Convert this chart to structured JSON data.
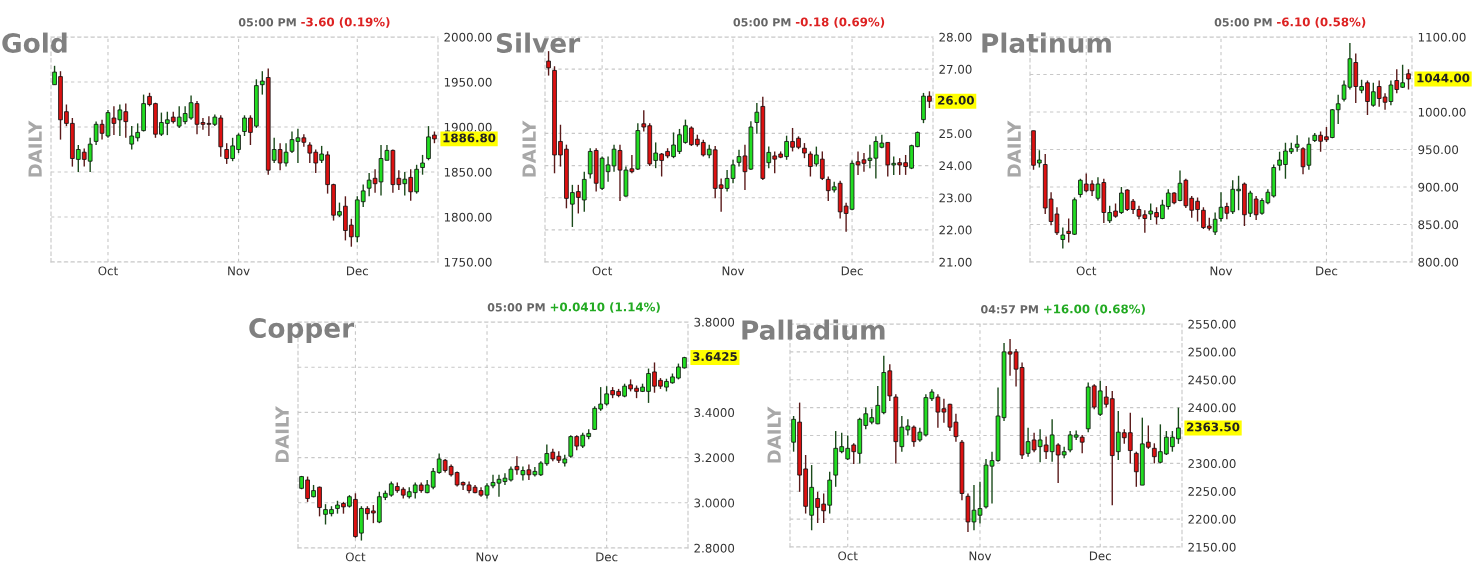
{
  "chart_data": [
    {
      "type": "candlestick",
      "title": "Gold",
      "ylabel": "DAILY",
      "grid": true,
      "annotations": [
        "05:00 PM",
        "-3.60 (0.19%)",
        "1886.80"
      ],
      "categories": [
        null,
        null,
        null,
        null,
        null,
        null,
        null,
        null,
        null,
        "Oct",
        null,
        null,
        null,
        null,
        null,
        null,
        null,
        null,
        null,
        null,
        null,
        null,
        null,
        null,
        null,
        null,
        null,
        null,
        null,
        null,
        null,
        "Nov",
        null,
        null,
        null,
        null,
        null,
        null,
        null,
        null,
        null,
        null,
        null,
        null,
        null,
        null,
        null,
        null,
        null,
        null,
        null,
        "Dec",
        null,
        null,
        null,
        null,
        null,
        null,
        null,
        null,
        null,
        null,
        null,
        null,
        null
      ],
      "ylim": [
        1750,
        2000
      ],
      "yticks": [
        {
          "value": 1750,
          "label": "1750.00"
        },
        {
          "value": 1800,
          "label": "1800.00"
        },
        {
          "value": 1850,
          "label": "1850.00"
        },
        {
          "value": 1900,
          "label": "1900.00"
        },
        {
          "value": 1950,
          "label": "1950.00"
        },
        {
          "value": 2000,
          "label": "2000.00"
        }
      ],
      "ohlc": [
        [
          1947,
          1968,
          1947,
          1961
        ],
        [
          1956,
          1962,
          1886,
          1908
        ],
        [
          1917,
          1925,
          1901,
          1904
        ],
        [
          1904,
          1910,
          1856,
          1865
        ],
        [
          1864,
          1880,
          1850,
          1875
        ],
        [
          1872,
          1876,
          1856,
          1864
        ],
        [
          1862,
          1888,
          1850,
          1881
        ],
        [
          1884,
          1906,
          1880,
          1903
        ],
        [
          1903,
          1908,
          1886,
          1893
        ],
        [
          1890,
          1919,
          1888,
          1916
        ],
        [
          1910,
          1923,
          1891,
          1904
        ],
        [
          1908,
          1925,
          1890,
          1919
        ],
        [
          1917,
          1926,
          1888,
          1906
        ],
        [
          1881,
          1901,
          1875,
          1890
        ],
        [
          1888,
          1904,
          1884,
          1894
        ],
        [
          1896,
          1936,
          1895,
          1926
        ],
        [
          1934,
          1938,
          1923,
          1925
        ],
        [
          1926,
          1927,
          1888,
          1892
        ],
        [
          1892,
          1916,
          1890,
          1905
        ],
        [
          1904,
          1917,
          1891,
          1908
        ],
        [
          1911,
          1917,
          1904,
          1906
        ],
        [
          1901,
          1923,
          1899,
          1911
        ],
        [
          1906,
          1923,
          1903,
          1915
        ],
        [
          1910,
          1935,
          1908,
          1927
        ],
        [
          1926,
          1929,
          1892,
          1903
        ],
        [
          1905,
          1910,
          1897,
          1903
        ],
        [
          1904,
          1912,
          1890,
          1903
        ],
        [
          1903,
          1914,
          1901,
          1911
        ],
        [
          1910,
          1913,
          1867,
          1878
        ],
        [
          1875,
          1882,
          1859,
          1865
        ],
        [
          1865,
          1888,
          1862,
          1879
        ],
        [
          1875,
          1893,
          1871,
          1891
        ],
        [
          1895,
          1913,
          1890,
          1910
        ],
        [
          1910,
          1913,
          1880,
          1894
        ],
        [
          1901,
          1953,
          1899,
          1946
        ],
        [
          1947,
          1962,
          1936,
          1951
        ],
        [
          1955,
          1965,
          1847,
          1852
        ],
        [
          1863,
          1888,
          1860,
          1875
        ],
        [
          1875,
          1882,
          1852,
          1860
        ],
        [
          1860,
          1882,
          1856,
          1872
        ],
        [
          1873,
          1895,
          1871,
          1886
        ],
        [
          1884,
          1898,
          1860,
          1888
        ],
        [
          1888,
          1892,
          1878,
          1883
        ],
        [
          1880,
          1883,
          1860,
          1871
        ],
        [
          1872,
          1875,
          1849,
          1860
        ],
        [
          1863,
          1879,
          1860,
          1870
        ],
        [
          1869,
          1873,
          1826,
          1836
        ],
        [
          1836,
          1837,
          1796,
          1802
        ],
        [
          1802,
          1816,
          1800,
          1806
        ],
        [
          1812,
          1823,
          1774,
          1785
        ],
        [
          1791,
          1798,
          1767,
          1778
        ],
        [
          1778,
          1823,
          1772,
          1819
        ],
        [
          1817,
          1836,
          1811,
          1829
        ],
        [
          1832,
          1849,
          1823,
          1841
        ],
        [
          1843,
          1853,
          1827,
          1837
        ],
        [
          1839,
          1880,
          1824,
          1865
        ],
        [
          1863,
          1880,
          1863,
          1874
        ],
        [
          1874,
          1875,
          1827,
          1836
        ],
        [
          1843,
          1852,
          1830,
          1836
        ],
        [
          1837,
          1850,
          1824,
          1842
        ],
        [
          1844,
          1853,
          1818,
          1828
        ],
        [
          1828,
          1858,
          1826,
          1853
        ],
        [
          1855,
          1869,
          1847,
          1860
        ],
        [
          1865,
          1901,
          1863,
          1889
        ],
        [
          1891,
          1895,
          1882,
          1886.8
        ]
      ]
    },
    {
      "type": "candlestick",
      "title": "Silver",
      "ylabel": "DAILY",
      "grid": true,
      "annotations": [
        "05:00 PM",
        "-0.18 (0.69%)",
        "26.00"
      ],
      "categories": [
        null,
        null,
        null,
        null,
        null,
        null,
        null,
        null,
        null,
        "Oct",
        null,
        null,
        null,
        null,
        null,
        null,
        null,
        null,
        null,
        null,
        null,
        null,
        null,
        null,
        null,
        null,
        null,
        null,
        null,
        null,
        null,
        "Nov",
        null,
        null,
        null,
        null,
        null,
        null,
        null,
        null,
        null,
        null,
        null,
        null,
        null,
        null,
        null,
        null,
        null,
        null,
        null,
        "Dec",
        null,
        null,
        null,
        null,
        null,
        null,
        null,
        null,
        null,
        null,
        null,
        null,
        null
      ],
      "ylim": [
        21,
        28
      ],
      "yticks": [
        {
          "value": 21,
          "label": "21.00"
        },
        {
          "value": 22,
          "label": "22.00"
        },
        {
          "value": 23,
          "label": "23.00"
        },
        {
          "value": 24,
          "label": "24.00"
        },
        {
          "value": 25,
          "label": "25.00"
        },
        {
          "value": 26,
          "label": null
        },
        {
          "value": 27,
          "label": "27.00"
        },
        {
          "value": 28,
          "label": "28.00"
        }
      ],
      "ohlc": [
        [
          27.25,
          27.56,
          26.8,
          27.04
        ],
        [
          26.96,
          27.09,
          23.76,
          24.33
        ],
        [
          24.75,
          25.27,
          23.97,
          24.33
        ],
        [
          24.51,
          24.65,
          22.67,
          22.98
        ],
        [
          22.8,
          23.4,
          22.09,
          23.16
        ],
        [
          23.19,
          23.4,
          22.51,
          23.01
        ],
        [
          22.93,
          23.81,
          22.56,
          23.57
        ],
        [
          23.74,
          24.54,
          23.6,
          24.44
        ],
        [
          24.47,
          24.54,
          23.19,
          23.45
        ],
        [
          23.29,
          24.28,
          23.24,
          24.23
        ],
        [
          23.81,
          24.28,
          23.5,
          24.02
        ],
        [
          23.99,
          24.65,
          23.81,
          24.51
        ],
        [
          24.47,
          24.65,
          22.9,
          23.86
        ],
        [
          23.05,
          23.97,
          23.03,
          23.86
        ],
        [
          23.9,
          24.33,
          23.76,
          23.81
        ],
        [
          23.89,
          25.32,
          23.86,
          25.09
        ],
        [
          25.3,
          25.72,
          25.06,
          25.2
        ],
        [
          25.24,
          25.32,
          23.99,
          24.05
        ],
        [
          24.16,
          24.72,
          23.92,
          24.39
        ],
        [
          24.36,
          24.39,
          23.66,
          24.16
        ],
        [
          24.44,
          24.54,
          24.23,
          24.3
        ],
        [
          24.28,
          25.03,
          24.23,
          24.64
        ],
        [
          24.44,
          25.14,
          24.36,
          24.96
        ],
        [
          24.72,
          25.43,
          24.68,
          25.24
        ],
        [
          25.17,
          25.22,
          24.61,
          24.65
        ],
        [
          24.82,
          24.96,
          24.59,
          24.65
        ],
        [
          24.72,
          24.8,
          24.28,
          24.33
        ],
        [
          24.33,
          24.65,
          24.23,
          24.51
        ],
        [
          24.49,
          24.61,
          22.98,
          23.29
        ],
        [
          23.4,
          23.6,
          22.56,
          23.29
        ],
        [
          23.29,
          23.86,
          23.19,
          23.6
        ],
        [
          23.6,
          24.18,
          23.45,
          24.02
        ],
        [
          24.1,
          24.49,
          23.97,
          24.28
        ],
        [
          24.3,
          24.65,
          23.24,
          23.81
        ],
        [
          23.89,
          25.38,
          23.86,
          25.2
        ],
        [
          25.34,
          25.95,
          24.99,
          25.66
        ],
        [
          25.84,
          26.14,
          23.55,
          23.6
        ],
        [
          24.09,
          24.59,
          23.92,
          24.41
        ],
        [
          24.3,
          24.44,
          23.76,
          24.2
        ],
        [
          24.36,
          24.44,
          24.23,
          24.26
        ],
        [
          24.28,
          24.93,
          24.18,
          24.75
        ],
        [
          24.75,
          25.17,
          24.44,
          24.57
        ],
        [
          24.85,
          24.91,
          24.51,
          24.57
        ],
        [
          24.54,
          24.7,
          24.23,
          24.39
        ],
        [
          24.36,
          24.44,
          23.66,
          23.97
        ],
        [
          24.05,
          24.59,
          23.97,
          24.33
        ],
        [
          24.2,
          24.44,
          23.55,
          23.6
        ],
        [
          23.57,
          23.66,
          22.9,
          23.22
        ],
        [
          23.24,
          23.5,
          23.16,
          23.34
        ],
        [
          23.45,
          23.53,
          22.35,
          22.56
        ],
        [
          22.74,
          22.84,
          21.94,
          22.51
        ],
        [
          22.64,
          24.16,
          22.61,
          24.07
        ],
        [
          24.12,
          24.44,
          23.71,
          24.02
        ],
        [
          24.18,
          24.39,
          23.81,
          24.07
        ],
        [
          24.16,
          24.65,
          23.92,
          24.23
        ],
        [
          24.23,
          24.91,
          23.6,
          24.75
        ],
        [
          24.57,
          24.96,
          24.54,
          24.7
        ],
        [
          24.72,
          24.72,
          23.66,
          24.02
        ],
        [
          24.02,
          24.28,
          23.71,
          24.07
        ],
        [
          24.09,
          24.23,
          23.71,
          24.02
        ],
        [
          24.09,
          24.33,
          23.71,
          23.97
        ],
        [
          23.92,
          24.65,
          23.89,
          24.62
        ],
        [
          24.59,
          25.06,
          24.57,
          25.03
        ],
        [
          25.43,
          26.26,
          25.32,
          26.16
        ],
        [
          26.16,
          26.31,
          25.79,
          26.0
        ]
      ]
    },
    {
      "type": "candlestick",
      "title": "Platinum",
      "ylabel": "DAILY",
      "grid": true,
      "annotations": [
        "05:00 PM",
        "-6.10 (0.58%)",
        "1044.00"
      ],
      "categories": [
        null,
        null,
        null,
        null,
        null,
        null,
        null,
        null,
        null,
        "Oct",
        null,
        null,
        null,
        null,
        null,
        null,
        null,
        null,
        null,
        null,
        null,
        null,
        null,
        null,
        null,
        null,
        null,
        null,
        null,
        null,
        null,
        null,
        "Nov",
        null,
        null,
        null,
        null,
        null,
        null,
        null,
        null,
        null,
        null,
        null,
        null,
        null,
        null,
        null,
        null,
        null,
        "Dec",
        null,
        null,
        null,
        null,
        null,
        null,
        null,
        null,
        null,
        null,
        null,
        null,
        null,
        null
      ],
      "ylim": [
        800,
        1100
      ],
      "yticks": [
        {
          "value": 800,
          "label": "800.00"
        },
        {
          "value": 850,
          "label": "850.00"
        },
        {
          "value": 900,
          "label": "900.00"
        },
        {
          "value": 950,
          "label": "950.00"
        },
        {
          "value": 1000,
          "label": "1000.00"
        },
        {
          "value": 1050,
          "label": null
        },
        {
          "value": 1100,
          "label": "1100.00"
        }
      ],
      "ohlc": [
        [
          975,
          975,
          923,
          929
        ],
        [
          932,
          949,
          926,
          936
        ],
        [
          930,
          944,
          864,
          872
        ],
        [
          884,
          893,
          849,
          854
        ],
        [
          864,
          873,
          836,
          839
        ],
        [
          830,
          846,
          818,
          836
        ],
        [
          841,
          858,
          826,
          838
        ],
        [
          837,
          886,
          836,
          883
        ],
        [
          890,
          911,
          886,
          909
        ],
        [
          904,
          918,
          893,
          895
        ],
        [
          904,
          909,
          888,
          895
        ],
        [
          885,
          913,
          882,
          904
        ],
        [
          906,
          911,
          852,
          866
        ],
        [
          855,
          875,
          852,
          866
        ],
        [
          868,
          878,
          859,
          861
        ],
        [
          866,
          900,
          864,
          892
        ],
        [
          896,
          897,
          868,
          870
        ],
        [
          881,
          884,
          864,
          870
        ],
        [
          870,
          875,
          857,
          861
        ],
        [
          863,
          869,
          839,
          858
        ],
        [
          864,
          878,
          856,
          868
        ],
        [
          866,
          873,
          850,
          860
        ],
        [
          858,
          883,
          857,
          876
        ],
        [
          874,
          897,
          870,
          892
        ],
        [
          892,
          893,
          877,
          879
        ],
        [
          882,
          922,
          881,
          905
        ],
        [
          909,
          911,
          872,
          875
        ],
        [
          885,
          888,
          859,
          869
        ],
        [
          881,
          886,
          854,
          870
        ],
        [
          869,
          873,
          844,
          846
        ],
        [
          848,
          859,
          842,
          845
        ],
        [
          840,
          866,
          836,
          857
        ],
        [
          858,
          893,
          854,
          873
        ],
        [
          874,
          879,
          857,
          865
        ],
        [
          867,
          909,
          864,
          897
        ],
        [
          895,
          915,
          869,
          897
        ],
        [
          904,
          906,
          848,
          863
        ],
        [
          865,
          895,
          860,
          892
        ],
        [
          884,
          888,
          856,
          863
        ],
        [
          865,
          885,
          863,
          882
        ],
        [
          879,
          897,
          877,
          893
        ],
        [
          888,
          930,
          886,
          926
        ],
        [
          929,
          947,
          922,
          936
        ],
        [
          930,
          959,
          911,
          948
        ],
        [
          947,
          959,
          944,
          951
        ],
        [
          953,
          969,
          947,
          957
        ],
        [
          951,
          953,
          917,
          927
        ],
        [
          929,
          966,
          923,
          957
        ],
        [
          962,
          972,
          960,
          969
        ],
        [
          969,
          974,
          947,
          961
        ],
        [
          967,
          980,
          960,
          963
        ],
        [
          966,
          1004,
          965,
          1003
        ],
        [
          1003,
          1023,
          984,
          1011
        ],
        [
          1017,
          1042,
          1014,
          1036
        ],
        [
          1033,
          1092,
          1030,
          1071
        ],
        [
          1066,
          1078,
          1012,
          1034
        ],
        [
          1029,
          1043,
          1025,
          1034
        ],
        [
          1039,
          1042,
          996,
          1014
        ],
        [
          1009,
          1039,
          1007,
          1027
        ],
        [
          1034,
          1042,
          1007,
          1018
        ],
        [
          1020,
          1025,
          1003,
          1013
        ],
        [
          1014,
          1042,
          1009,
          1036
        ],
        [
          1042,
          1057,
          1025,
          1030
        ],
        [
          1033,
          1063,
          1032,
          1039
        ],
        [
          1051,
          1057,
          1030,
          1044
        ]
      ]
    },
    {
      "type": "candlestick",
      "title": "Copper",
      "ylabel": "DAILY",
      "grid": true,
      "annotations": [
        "05:00 PM",
        "+0.0410 (1.14%)",
        "3.6425"
      ],
      "categories": [
        null,
        null,
        null,
        null,
        null,
        null,
        null,
        null,
        null,
        "Oct",
        null,
        null,
        null,
        null,
        null,
        null,
        null,
        null,
        null,
        null,
        null,
        null,
        null,
        null,
        null,
        null,
        null,
        null,
        null,
        null,
        null,
        "Nov",
        null,
        null,
        null,
        null,
        null,
        null,
        null,
        null,
        null,
        null,
        null,
        null,
        null,
        null,
        null,
        null,
        null,
        null,
        null,
        "Dec",
        null,
        null,
        null,
        null,
        null,
        null,
        null,
        null,
        null,
        null,
        null,
        null,
        null
      ],
      "ylim": [
        2.8,
        3.8
      ],
      "yticks": [
        {
          "value": 2.8,
          "label": "2.8000"
        },
        {
          "value": 3.0,
          "label": "3.0000"
        },
        {
          "value": 3.2,
          "label": "3.2000"
        },
        {
          "value": 3.4,
          "label": "3.4000"
        },
        {
          "value": 3.6,
          "label": null
        },
        {
          "value": 3.8,
          "label": "3.8000"
        }
      ],
      "ohlc": [
        [
          3.064,
          3.119,
          3.06,
          3.116
        ],
        [
          3.101,
          3.116,
          3.004,
          3.019
        ],
        [
          3.027,
          3.079,
          3.024,
          3.054
        ],
        [
          3.069,
          3.072,
          2.94,
          2.979
        ],
        [
          2.949,
          2.994,
          2.904,
          2.97
        ],
        [
          2.952,
          2.985,
          2.94,
          2.97
        ],
        [
          2.975,
          3.009,
          2.952,
          2.99
        ],
        [
          2.997,
          3.004,
          2.952,
          2.982
        ],
        [
          2.985,
          3.034,
          2.979,
          3.027
        ],
        [
          3.015,
          3.042,
          2.845,
          2.851
        ],
        [
          2.866,
          2.985,
          2.833,
          2.975
        ],
        [
          2.975,
          2.985,
          2.925,
          2.952
        ],
        [
          2.964,
          2.99,
          2.91,
          2.955
        ],
        [
          2.915,
          3.049,
          2.91,
          3.027
        ],
        [
          3.024,
          3.054,
          3.012,
          3.042
        ],
        [
          3.034,
          3.094,
          3.027,
          3.084
        ],
        [
          3.072,
          3.09,
          3.045,
          3.054
        ],
        [
          3.06,
          3.069,
          3.019,
          3.034
        ],
        [
          3.027,
          3.069,
          3.019,
          3.049
        ],
        [
          3.045,
          3.09,
          3.019,
          3.079
        ],
        [
          3.079,
          3.09,
          3.045,
          3.054
        ],
        [
          3.045,
          3.101,
          3.042,
          3.079
        ],
        [
          3.069,
          3.154,
          3.06,
          3.139
        ],
        [
          3.134,
          3.218,
          3.128,
          3.194
        ],
        [
          3.188,
          3.194,
          3.134,
          3.143
        ],
        [
          3.161,
          3.169,
          3.116,
          3.124
        ],
        [
          3.134,
          3.139,
          3.072,
          3.079
        ],
        [
          3.09,
          3.094,
          3.057,
          3.079
        ],
        [
          3.079,
          3.094,
          3.042,
          3.054
        ],
        [
          3.069,
          3.079,
          3.042,
          3.045
        ],
        [
          3.054,
          3.069,
          3.027,
          3.034
        ],
        [
          3.034,
          3.087,
          3.019,
          3.075
        ],
        [
          3.075,
          3.124,
          3.064,
          3.09
        ],
        [
          3.087,
          3.124,
          3.027,
          3.104
        ],
        [
          3.094,
          3.131,
          3.079,
          3.109
        ],
        [
          3.101,
          3.161,
          3.094,
          3.149
        ],
        [
          3.161,
          3.206,
          3.124,
          3.146
        ],
        [
          3.124,
          3.161,
          3.099,
          3.143
        ],
        [
          3.146,
          3.169,
          3.101,
          3.124
        ],
        [
          3.124,
          3.158,
          3.116,
          3.139
        ],
        [
          3.124,
          3.184,
          3.119,
          3.176
        ],
        [
          3.173,
          3.258,
          3.164,
          3.218
        ],
        [
          3.224,
          3.239,
          3.184,
          3.194
        ],
        [
          3.206,
          3.228,
          3.176,
          3.188
        ],
        [
          3.176,
          3.213,
          3.161,
          3.194
        ],
        [
          3.206,
          3.299,
          3.199,
          3.293
        ],
        [
          3.293,
          3.299,
          3.233,
          3.251
        ],
        [
          3.251,
          3.31,
          3.243,
          3.299
        ],
        [
          3.293,
          3.325,
          3.281,
          3.307
        ],
        [
          3.325,
          3.427,
          3.322,
          3.418
        ],
        [
          3.415,
          3.512,
          3.407,
          3.437
        ],
        [
          3.437,
          3.516,
          3.43,
          3.482
        ],
        [
          3.497,
          3.512,
          3.463,
          3.478
        ],
        [
          3.493,
          3.504,
          3.467,
          3.475
        ],
        [
          3.472,
          3.527,
          3.467,
          3.516
        ],
        [
          3.522,
          3.546,
          3.493,
          3.504
        ],
        [
          3.507,
          3.519,
          3.463,
          3.493
        ],
        [
          3.493,
          3.527,
          3.49,
          3.512
        ],
        [
          3.493,
          3.594,
          3.442,
          3.572
        ],
        [
          3.579,
          3.621,
          3.487,
          3.516
        ],
        [
          3.542,
          3.552,
          3.504,
          3.516
        ],
        [
          3.512,
          3.549,
          3.493,
          3.537
        ],
        [
          3.531,
          3.572,
          3.527,
          3.557
        ],
        [
          3.552,
          3.616,
          3.546,
          3.601
        ],
        [
          3.597,
          3.646,
          3.594,
          3.6425
        ]
      ]
    },
    {
      "type": "candlestick",
      "title": "Palladium",
      "ylabel": "DAILY",
      "grid": true,
      "annotations": [
        "04:57 PM",
        "+16.00 (0.68%)",
        "2363.50"
      ],
      "categories": [
        null,
        null,
        null,
        null,
        null,
        null,
        null,
        null,
        null,
        "Oct",
        null,
        null,
        null,
        null,
        null,
        null,
        null,
        null,
        null,
        null,
        null,
        null,
        null,
        null,
        null,
        null,
        null,
        null,
        null,
        null,
        null,
        "Nov",
        null,
        null,
        null,
        null,
        null,
        null,
        null,
        null,
        null,
        null,
        null,
        null,
        null,
        null,
        null,
        null,
        null,
        null,
        null,
        "Dec",
        null,
        null,
        null,
        null,
        null,
        null,
        null,
        null,
        null,
        null,
        null,
        null,
        null
      ],
      "ylim": [
        2150,
        2550
      ],
      "yticks": [
        {
          "value": 2150,
          "label": "2150.00"
        },
        {
          "value": 2200,
          "label": "2200.00"
        },
        {
          "value": 2250,
          "label": "2250.00"
        },
        {
          "value": 2300,
          "label": "2300.00"
        },
        {
          "value": 2350,
          "label": null
        },
        {
          "value": 2400,
          "label": "2400.00"
        },
        {
          "value": 2450,
          "label": "2450.00"
        },
        {
          "value": 2500,
          "label": "2500.00"
        },
        {
          "value": 2550,
          "label": "2550.00"
        }
      ],
      "ohlc": [
        [
          2338,
          2385,
          2321,
          2379
        ],
        [
          2374,
          2409,
          2249,
          2279
        ],
        [
          2290,
          2315,
          2210,
          2223
        ],
        [
          2207,
          2297,
          2180,
          2257
        ],
        [
          2237,
          2249,
          2193,
          2221
        ],
        [
          2227,
          2246,
          2193,
          2215
        ],
        [
          2225,
          2285,
          2210,
          2270
        ],
        [
          2279,
          2358,
          2258,
          2327
        ],
        [
          2321,
          2355,
          2318,
          2330
        ],
        [
          2308,
          2350,
          2306,
          2327
        ],
        [
          2333,
          2336,
          2299,
          2321
        ],
        [
          2318,
          2382,
          2300,
          2379
        ],
        [
          2368,
          2400,
          2361,
          2389
        ],
        [
          2374,
          2398,
          2370,
          2382
        ],
        [
          2371,
          2439,
          2370,
          2404
        ],
        [
          2391,
          2493,
          2388,
          2463
        ],
        [
          2466,
          2478,
          2412,
          2421
        ],
        [
          2419,
          2424,
          2300,
          2339
        ],
        [
          2330,
          2385,
          2321,
          2365
        ],
        [
          2360,
          2379,
          2350,
          2367
        ],
        [
          2365,
          2368,
          2330,
          2339
        ],
        [
          2342,
          2364,
          2339,
          2356
        ],
        [
          2351,
          2424,
          2348,
          2418
        ],
        [
          2416,
          2433,
          2412,
          2428
        ],
        [
          2419,
          2424,
          2364,
          2392
        ],
        [
          2398,
          2416,
          2373,
          2392
        ],
        [
          2406,
          2407,
          2358,
          2365
        ],
        [
          2374,
          2389,
          2339,
          2348
        ],
        [
          2338,
          2342,
          2234,
          2246
        ],
        [
          2241,
          2246,
          2177,
          2195
        ],
        [
          2195,
          2261,
          2180,
          2216
        ],
        [
          2207,
          2267,
          2192,
          2219
        ],
        [
          2222,
          2308,
          2219,
          2297
        ],
        [
          2295,
          2321,
          2228,
          2305
        ],
        [
          2305,
          2436,
          2303,
          2385
        ],
        [
          2382,
          2516,
          2376,
          2500
        ],
        [
          2500,
          2523,
          2457,
          2496
        ],
        [
          2500,
          2505,
          2438,
          2469
        ],
        [
          2472,
          2481,
          2308,
          2315
        ],
        [
          2318,
          2364,
          2312,
          2339
        ],
        [
          2342,
          2355,
          2320,
          2324
        ],
        [
          2330,
          2361,
          2302,
          2342
        ],
        [
          2333,
          2348,
          2308,
          2321
        ],
        [
          2321,
          2379,
          2303,
          2351
        ],
        [
          2333,
          2336,
          2265,
          2315
        ],
        [
          2315,
          2330,
          2309,
          2321
        ],
        [
          2324,
          2358,
          2320,
          2351
        ],
        [
          2347,
          2359,
          2342,
          2351
        ],
        [
          2347,
          2351,
          2318,
          2338
        ],
        [
          2362,
          2445,
          2356,
          2437
        ],
        [
          2439,
          2442,
          2397,
          2401
        ],
        [
          2388,
          2448,
          2385,
          2430
        ],
        [
          2419,
          2439,
          2400,
          2406
        ],
        [
          2416,
          2430,
          2225,
          2314
        ],
        [
          2321,
          2394,
          2306,
          2356
        ],
        [
          2355,
          2361,
          2335,
          2346
        ],
        [
          2355,
          2391,
          2300,
          2323
        ],
        [
          2318,
          2321,
          2258,
          2285
        ],
        [
          2261,
          2382,
          2261,
          2335
        ],
        [
          2338,
          2368,
          2326,
          2329
        ],
        [
          2327,
          2336,
          2300,
          2312
        ],
        [
          2302,
          2370,
          2300,
          2321
        ],
        [
          2317,
          2358,
          2315,
          2347
        ],
        [
          2330,
          2358,
          2321,
          2347
        ],
        [
          2344,
          2400,
          2335,
          2363.5
        ]
      ]
    }
  ]
}
